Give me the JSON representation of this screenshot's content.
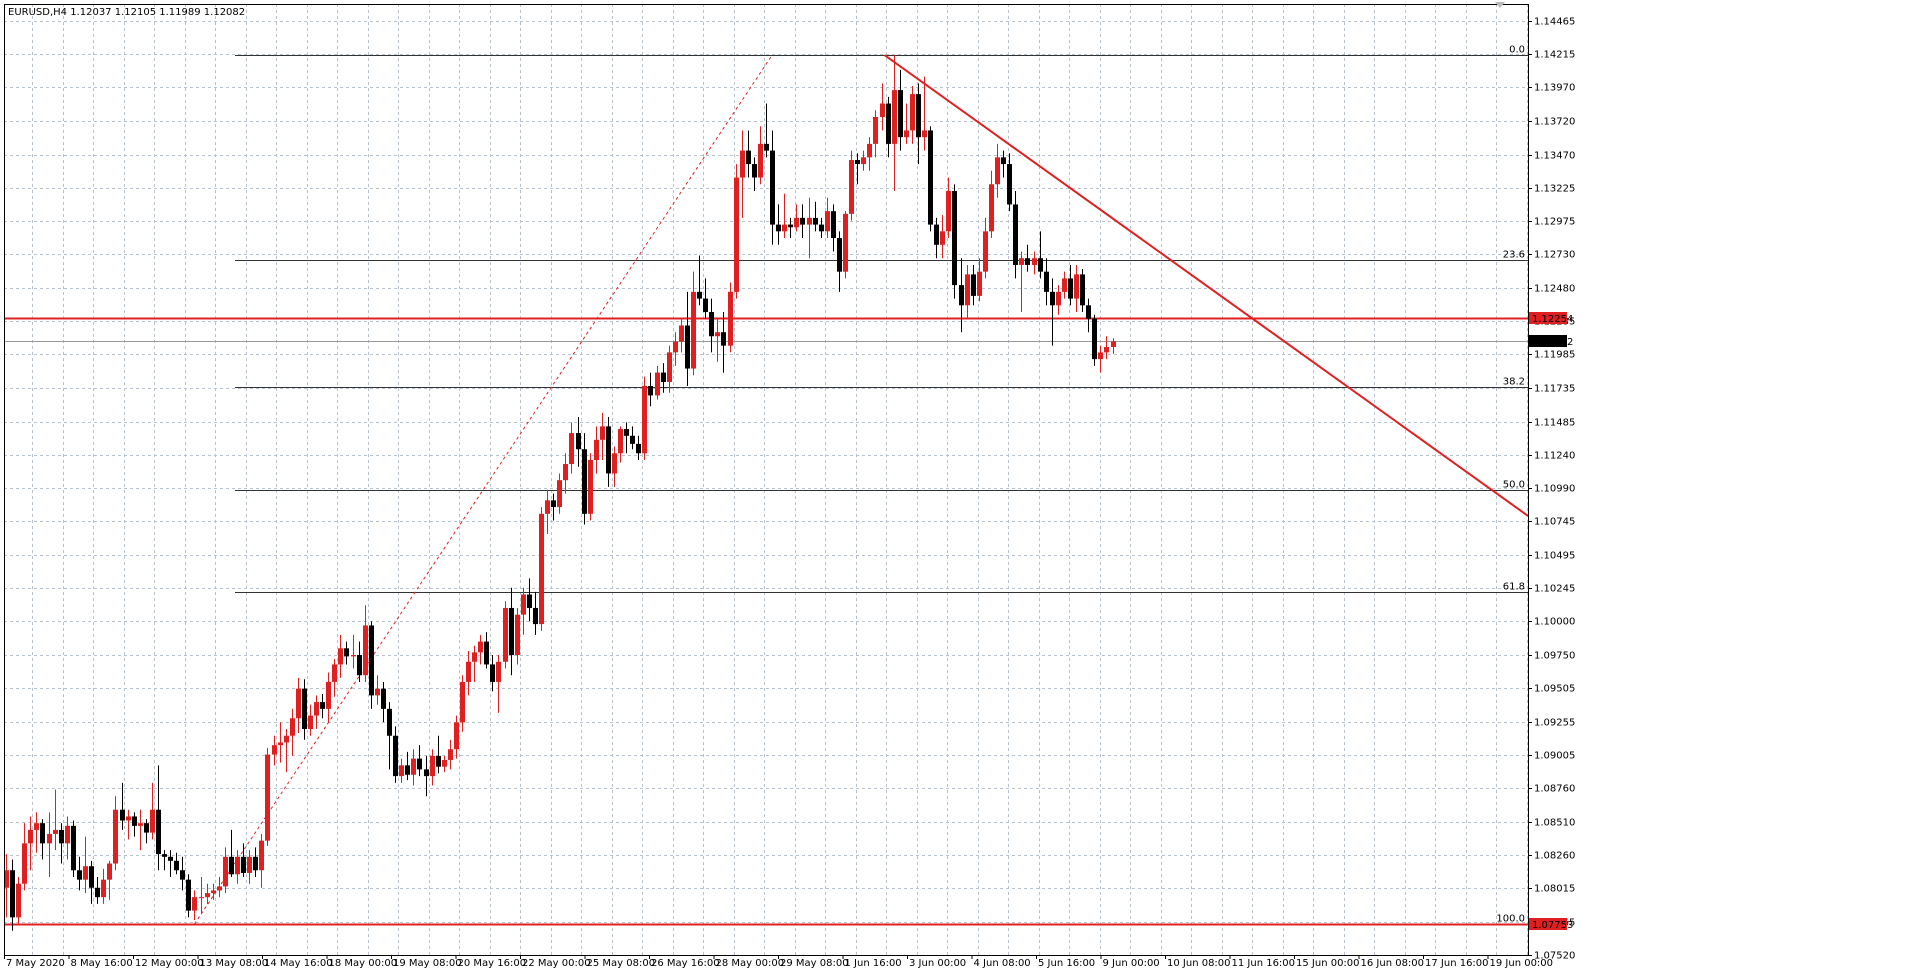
{
  "symbol_info": "EURUSD,H4  1.12037 1.12105 1.11989 1.12082",
  "chart_data": {
    "type": "candlestick",
    "ylim": [
      1.0752,
      1.1459
    ],
    "y_ticks": [
      "1.14465",
      "1.14215",
      "1.13970",
      "1.13720",
      "1.13470",
      "1.13225",
      "1.12975",
      "1.12730",
      "1.12480",
      "1.12235",
      "1.11985",
      "1.11735",
      "1.11485",
      "1.11240",
      "1.10990",
      "1.10745",
      "1.10495",
      "1.10245",
      "1.10000",
      "1.09750",
      "1.09505",
      "1.09255",
      "1.09005",
      "1.08760",
      "1.08510",
      "1.08260",
      "1.08015",
      "1.07765",
      "1.07520"
    ],
    "x_ticks": [
      "7 May 2020",
      "8 May 16:00",
      "12 May 00:00",
      "13 May 08:00",
      "14 May 16:00",
      "18 May 00:00",
      "19 May 08:00",
      "20 May 16:00",
      "22 May 00:00",
      "25 May 08:00",
      "26 May 16:00",
      "28 May 00:00",
      "29 May 08:00",
      "1 Jun 16:00",
      "3 Jun 00:00",
      "4 Jun 08:00",
      "5 Jun 16:00",
      "9 Jun 00:00",
      "10 Jun 08:00",
      "11 Jun 16:00",
      "15 Jun 00:00",
      "16 Jun 08:00",
      "17 Jun 16:00",
      "19 Jun 00:00"
    ],
    "bid_price": "1.12082",
    "resistance_price": "1.12254",
    "support_price": "1.07753",
    "fibonacci": {
      "high": 1.1421,
      "low": 1.0775,
      "levels": [
        {
          "label": "0.0",
          "ratio": 0.0
        },
        {
          "label": "23.6",
          "ratio": 0.236
        },
        {
          "label": "38.2",
          "ratio": 0.382
        },
        {
          "label": "50.0",
          "ratio": 0.5
        },
        {
          "label": "61.8",
          "ratio": 0.618
        },
        {
          "label": "100.0",
          "ratio": 1.0
        }
      ]
    },
    "trendline": {
      "from": [
        144.5,
        1.1421
      ],
      "to": [
        231,
        1.1141
      ]
    },
    "fib_diagonal": {
      "from": [
        31,
        1.0775
      ],
      "to": [
        126,
        1.1421
      ]
    },
    "candles": [
      [
        1.0802,
        1.0827,
        1.078,
        1.0815
      ],
      [
        1.0815,
        1.0823,
        1.077,
        1.078
      ],
      [
        1.078,
        1.081,
        1.0775,
        1.0805
      ],
      [
        1.0805,
        1.085,
        1.08,
        1.0835
      ],
      [
        1.0835,
        1.0855,
        1.0815,
        1.0845
      ],
      [
        1.0845,
        1.0858,
        1.0828,
        1.085
      ],
      [
        1.085,
        1.0853,
        1.0823,
        1.0835
      ],
      [
        1.0835,
        1.0858,
        1.081,
        1.0842
      ],
      [
        1.0842,
        1.0875,
        1.083,
        1.0845
      ],
      [
        1.0845,
        1.085,
        1.082,
        1.0835
      ],
      [
        1.0835,
        1.0855,
        1.0823,
        1.0848
      ],
      [
        1.0848,
        1.0852,
        1.081,
        1.0815
      ],
      [
        1.0815,
        1.0825,
        1.08,
        1.0808
      ],
      [
        1.0808,
        1.084,
        1.0798,
        1.0818
      ],
      [
        1.0818,
        1.0822,
        1.079,
        1.0802
      ],
      [
        1.0802,
        1.081,
        1.079,
        1.0795
      ],
      [
        1.0795,
        1.0816,
        1.079,
        1.0808
      ],
      [
        1.0808,
        1.0822,
        1.0793,
        1.082
      ],
      [
        1.082,
        1.087,
        1.0815,
        1.086
      ],
      [
        1.086,
        1.088,
        1.0845,
        1.0852
      ],
      [
        1.0852,
        1.086,
        1.0838,
        1.0855
      ],
      [
        1.0855,
        1.0858,
        1.084,
        1.0848
      ],
      [
        1.0848,
        1.086,
        1.083,
        1.085
      ],
      [
        1.085,
        1.0853,
        1.0835,
        1.0843
      ],
      [
        1.0843,
        1.088,
        1.0838,
        1.086
      ],
      [
        1.086,
        1.0893,
        1.0815,
        1.0827
      ],
      [
        1.0827,
        1.083,
        1.0815,
        1.0825
      ],
      [
        1.0825,
        1.083,
        1.081,
        1.0822
      ],
      [
        1.0822,
        1.0828,
        1.0812,
        1.0815
      ],
      [
        1.0815,
        1.0825,
        1.08,
        1.0808
      ],
      [
        1.0808,
        1.0812,
        1.078,
        1.0785
      ],
      [
        1.0785,
        1.08,
        1.0778,
        1.0795
      ],
      [
        1.0795,
        1.081,
        1.0783,
        1.0795
      ],
      [
        1.0795,
        1.0805,
        1.079,
        1.0798
      ],
      [
        1.0798,
        1.0805,
        1.0793,
        1.08
      ],
      [
        1.08,
        1.081,
        1.0795,
        1.0803
      ],
      [
        1.0803,
        1.0832,
        1.0798,
        1.0825
      ],
      [
        1.0825,
        1.0845,
        1.081,
        1.0812
      ],
      [
        1.0812,
        1.083,
        1.0805,
        1.0825
      ],
      [
        1.0825,
        1.0835,
        1.081,
        1.0813
      ],
      [
        1.0813,
        1.083,
        1.0805,
        1.0825
      ],
      [
        1.0825,
        1.0832,
        1.081,
        1.0815
      ],
      [
        1.0815,
        1.0842,
        1.0802,
        1.0837
      ],
      [
        1.0837,
        1.0906,
        1.0833,
        1.0901
      ],
      [
        1.0901,
        1.0915,
        1.0893,
        1.0908
      ],
      [
        1.0908,
        1.0925,
        1.0895,
        1.091
      ],
      [
        1.091,
        1.092,
        1.0888,
        1.0915
      ],
      [
        1.0915,
        1.0935,
        1.09,
        1.0928
      ],
      [
        1.0928,
        1.0958,
        1.0917,
        1.095
      ],
      [
        1.095,
        1.0957,
        1.0912,
        1.092
      ],
      [
        1.092,
        1.0938,
        1.0915,
        1.093
      ],
      [
        1.093,
        1.0945,
        1.092,
        1.094
      ],
      [
        1.094,
        1.0946,
        1.0928,
        1.0935
      ],
      [
        1.0935,
        1.0962,
        1.0925,
        1.0955
      ],
      [
        1.0955,
        1.0972,
        1.0944,
        1.0968
      ],
      [
        1.0968,
        1.099,
        1.0958,
        1.098
      ],
      [
        1.098,
        1.0985,
        1.0968,
        1.0974
      ],
      [
        1.0974,
        1.099,
        1.0965,
        1.0975
      ],
      [
        1.0975,
        1.0985,
        1.0955,
        1.096
      ],
      [
        1.096,
        1.1012,
        1.0955,
        1.0997
      ],
      [
        1.0997,
        1.1,
        1.0935,
        1.0945
      ],
      [
        1.0945,
        1.096,
        1.0938,
        1.095
      ],
      [
        1.095,
        1.0955,
        1.0925,
        1.0935
      ],
      [
        1.0935,
        1.094,
        1.089,
        1.0915
      ],
      [
        1.0915,
        1.0922,
        1.088,
        1.0885
      ],
      [
        1.0885,
        1.0898,
        1.088,
        1.0893
      ],
      [
        1.0893,
        1.0903,
        1.0882,
        1.0886
      ],
      [
        1.0886,
        1.0905,
        1.0878,
        1.0898
      ],
      [
        1.0898,
        1.0908,
        1.0885,
        1.089
      ],
      [
        1.089,
        1.09,
        1.087,
        1.0885
      ],
      [
        1.0885,
        1.0905,
        1.0878,
        1.09
      ],
      [
        1.09,
        1.0915,
        1.0887,
        1.0892
      ],
      [
        1.0892,
        1.09,
        1.0888,
        1.0897
      ],
      [
        1.0897,
        1.0912,
        1.089,
        1.0905
      ],
      [
        1.0905,
        1.093,
        1.0898,
        1.0925
      ],
      [
        1.0925,
        1.096,
        1.0918,
        1.0955
      ],
      [
        1.0955,
        1.0978,
        1.0945,
        1.097
      ],
      [
        1.097,
        1.0982,
        1.0955,
        1.0977
      ],
      [
        1.0977,
        1.099,
        1.0968,
        1.0985
      ],
      [
        1.0985,
        1.0992,
        1.0965,
        1.0968
      ],
      [
        1.0968,
        1.0975,
        1.0948,
        1.0955
      ],
      [
        1.0955,
        1.0975,
        1.0932,
        1.097
      ],
      [
        1.097,
        1.1015,
        1.0965,
        1.101
      ],
      [
        1.101,
        1.1025,
        1.096,
        1.0975
      ],
      [
        1.0975,
        1.101,
        1.0968,
        1.1005
      ],
      [
        1.1005,
        1.1025,
        1.099,
        1.102
      ],
      [
        1.102,
        1.1032,
        1.1,
        1.101
      ],
      [
        1.101,
        1.1022,
        1.099,
        1.0998
      ],
      [
        1.0998,
        1.1085,
        1.0993,
        1.108
      ],
      [
        1.108,
        1.1098,
        1.1065,
        1.109
      ],
      [
        1.109,
        1.1095,
        1.1075,
        1.1085
      ],
      [
        1.1085,
        1.111,
        1.108,
        1.1105
      ],
      [
        1.1105,
        1.1125,
        1.1095,
        1.1117
      ],
      [
        1.1117,
        1.1148,
        1.111,
        1.114
      ],
      [
        1.114,
        1.1152,
        1.1115,
        1.1128
      ],
      [
        1.1128,
        1.114,
        1.1072,
        1.108
      ],
      [
        1.108,
        1.1125,
        1.1075,
        1.112
      ],
      [
        1.112,
        1.1145,
        1.111,
        1.1135
      ],
      [
        1.1135,
        1.1155,
        1.112,
        1.1145
      ],
      [
        1.1145,
        1.1152,
        1.11,
        1.111
      ],
      [
        1.111,
        1.113,
        1.11,
        1.1125
      ],
      [
        1.1125,
        1.1145,
        1.1118,
        1.1143
      ],
      [
        1.1143,
        1.1148,
        1.1125,
        1.1138
      ],
      [
        1.1138,
        1.1145,
        1.1128,
        1.1132
      ],
      [
        1.1132,
        1.1138,
        1.112,
        1.1125
      ],
      [
        1.1125,
        1.1182,
        1.112,
        1.1175
      ],
      [
        1.1175,
        1.1185,
        1.116,
        1.1168
      ],
      [
        1.1168,
        1.119,
        1.1165,
        1.1185
      ],
      [
        1.1185,
        1.1192,
        1.117,
        1.1178
      ],
      [
        1.1178,
        1.1205,
        1.117,
        1.12
      ],
      [
        1.12,
        1.1215,
        1.119,
        1.1208
      ],
      [
        1.1208,
        1.1225,
        1.12,
        1.122
      ],
      [
        1.122,
        1.1245,
        1.1175,
        1.1188
      ],
      [
        1.1188,
        1.126,
        1.1183,
        1.1245
      ],
      [
        1.1245,
        1.1272,
        1.1235,
        1.124
      ],
      [
        1.124,
        1.1255,
        1.1225,
        1.123
      ],
      [
        1.123,
        1.124,
        1.12,
        1.1212
      ],
      [
        1.1212,
        1.1225,
        1.1193,
        1.1215
      ],
      [
        1.1215,
        1.123,
        1.1185,
        1.1205
      ],
      [
        1.1205,
        1.1252,
        1.12,
        1.1245
      ],
      [
        1.1245,
        1.134,
        1.124,
        1.133
      ],
      [
        1.133,
        1.1365,
        1.13,
        1.135
      ],
      [
        1.135,
        1.1365,
        1.133,
        1.134
      ],
      [
        1.134,
        1.1345,
        1.132,
        1.133
      ],
      [
        1.133,
        1.1368,
        1.1325,
        1.1355
      ],
      [
        1.1355,
        1.1385,
        1.1345,
        1.135
      ],
      [
        1.135,
        1.1365,
        1.128,
        1.1295
      ],
      [
        1.1295,
        1.131,
        1.128,
        1.129
      ],
      [
        1.129,
        1.1318,
        1.1285,
        1.1295
      ],
      [
        1.1295,
        1.13,
        1.1285,
        1.1293
      ],
      [
        1.1293,
        1.131,
        1.129,
        1.13
      ],
      [
        1.13,
        1.131,
        1.1285,
        1.1295
      ],
      [
        1.1295,
        1.1315,
        1.127,
        1.13
      ],
      [
        1.13,
        1.1312,
        1.129,
        1.1295
      ],
      [
        1.1295,
        1.13,
        1.1285,
        1.129
      ],
      [
        1.129,
        1.1315,
        1.1285,
        1.1305
      ],
      [
        1.1305,
        1.131,
        1.1275,
        1.1285
      ],
      [
        1.1285,
        1.129,
        1.1245,
        1.126
      ],
      [
        1.126,
        1.1305,
        1.1255,
        1.1303
      ],
      [
        1.1303,
        1.135,
        1.1298,
        1.1343
      ],
      [
        1.1343,
        1.1348,
        1.1325,
        1.134
      ],
      [
        1.134,
        1.135,
        1.1335,
        1.1345
      ],
      [
        1.1345,
        1.136,
        1.1335,
        1.1355
      ],
      [
        1.1355,
        1.138,
        1.1345,
        1.1375
      ],
      [
        1.1375,
        1.14,
        1.1365,
        1.1385
      ],
      [
        1.1385,
        1.139,
        1.1345,
        1.1355
      ],
      [
        1.1355,
        1.1421,
        1.132,
        1.1395
      ],
      [
        1.1395,
        1.141,
        1.135,
        1.136
      ],
      [
        1.136,
        1.1385,
        1.1355,
        1.1365
      ],
      [
        1.1365,
        1.1398,
        1.1355,
        1.1392
      ],
      [
        1.1392,
        1.14,
        1.134,
        1.136
      ],
      [
        1.136,
        1.1405,
        1.135,
        1.1365
      ],
      [
        1.1365,
        1.1368,
        1.129,
        1.1295
      ],
      [
        1.1295,
        1.13,
        1.127,
        1.128
      ],
      [
        1.128,
        1.1302,
        1.127,
        1.129
      ],
      [
        1.129,
        1.133,
        1.1285,
        1.132
      ],
      [
        1.132,
        1.1325,
        1.124,
        1.125
      ],
      [
        1.125,
        1.127,
        1.1215,
        1.1235
      ],
      [
        1.1235,
        1.1265,
        1.1225,
        1.1258
      ],
      [
        1.1258,
        1.1265,
        1.1235,
        1.1242
      ],
      [
        1.1242,
        1.127,
        1.1238,
        1.126
      ],
      [
        1.126,
        1.13,
        1.1255,
        1.129
      ],
      [
        1.129,
        1.1335,
        1.1285,
        1.1325
      ],
      [
        1.1325,
        1.1355,
        1.1315,
        1.1345
      ],
      [
        1.1345,
        1.135,
        1.133,
        1.134
      ],
      [
        1.134,
        1.1348,
        1.1305,
        1.131
      ],
      [
        1.131,
        1.132,
        1.1255,
        1.1265
      ],
      [
        1.1265,
        1.1275,
        1.123,
        1.127
      ],
      [
        1.127,
        1.128,
        1.126,
        1.1265
      ],
      [
        1.1265,
        1.1275,
        1.1258,
        1.127
      ],
      [
        1.127,
        1.129,
        1.1255,
        1.126
      ],
      [
        1.126,
        1.127,
        1.1235,
        1.1245
      ],
      [
        1.1245,
        1.1255,
        1.1205,
        1.1235
      ],
      [
        1.1235,
        1.125,
        1.1228,
        1.1245
      ],
      [
        1.1245,
        1.126,
        1.124,
        1.1255
      ],
      [
        1.1255,
        1.1265,
        1.1235,
        1.124
      ],
      [
        1.124,
        1.1265,
        1.123,
        1.1258
      ],
      [
        1.1258,
        1.1262,
        1.123,
        1.1235
      ],
      [
        1.1235,
        1.124,
        1.1215,
        1.1225
      ],
      [
        1.1225,
        1.1228,
        1.119,
        1.1195
      ],
      [
        1.1195,
        1.1205,
        1.1185,
        1.12
      ],
      [
        1.12,
        1.1212,
        1.1195,
        1.1204
      ],
      [
        1.1204,
        1.12105,
        1.11989,
        1.12082
      ]
    ]
  }
}
